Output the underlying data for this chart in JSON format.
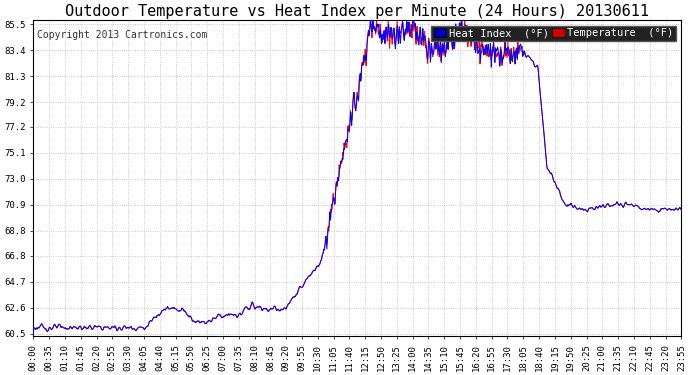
{
  "title": "Outdoor Temperature vs Heat Index per Minute (24 Hours) 20130611",
  "copyright": "Copyright 2013 Cartronics.com",
  "legend_heat_index": "Heat Index  (°F)",
  "legend_temperature": "Temperature  (°F)",
  "heat_index_color": "#0000ff",
  "temperature_color": "#ff0000",
  "heat_index_bg": "#0000bb",
  "temperature_bg": "#cc0000",
  "background_color": "#ffffff",
  "grid_color": "#bbbbbb",
  "yticks": [
    60.5,
    62.6,
    64.7,
    66.8,
    68.8,
    70.9,
    73.0,
    75.1,
    77.2,
    79.2,
    81.3,
    83.4,
    85.5
  ],
  "ymin": 60.5,
  "ymax": 85.5,
  "xtick_labels": [
    "00:00",
    "00:35",
    "01:10",
    "01:45",
    "02:20",
    "02:55",
    "03:30",
    "04:05",
    "04:40",
    "05:15",
    "05:50",
    "06:25",
    "07:00",
    "07:35",
    "08:10",
    "08:45",
    "09:20",
    "09:55",
    "10:30",
    "11:05",
    "11:40",
    "12:15",
    "12:50",
    "13:25",
    "14:00",
    "14:35",
    "15:10",
    "15:45",
    "16:20",
    "16:55",
    "17:30",
    "18:05",
    "18:40",
    "19:15",
    "19:50",
    "20:25",
    "21:00",
    "21:35",
    "22:10",
    "22:45",
    "23:20",
    "23:55"
  ],
  "title_fontsize": 11,
  "copyright_fontsize": 7,
  "axis_fontsize": 6.5,
  "legend_fontsize": 7.5
}
